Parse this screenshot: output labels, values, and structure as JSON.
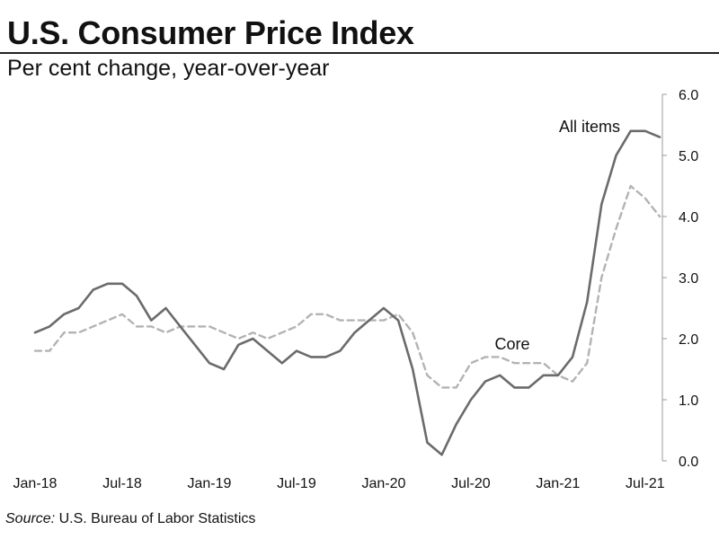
{
  "header": {
    "title": "U.S. Consumer Price Index",
    "subtitle": "Per cent change, year-over-year"
  },
  "source": {
    "label": "Source:",
    "text": "U.S. Bureau of Labor Statistics"
  },
  "colors": {
    "all_items": "#6b6b6b",
    "core": "#b3b3b3",
    "axis": "#999999"
  },
  "chart_data": {
    "type": "line",
    "title": "U.S. Consumer Price Index",
    "subtitle": "Per cent change, year-over-year",
    "xlabel": "",
    "ylabel": "",
    "ylim": [
      0,
      6
    ],
    "y_ticks": [
      "0.0",
      "1.0",
      "2.0",
      "3.0",
      "4.0",
      "5.0",
      "6.0"
    ],
    "y_axis_side": "right",
    "x_tick_labels": [
      "Jan-18",
      "Jul-18",
      "Jan-19",
      "Jul-19",
      "Jan-20",
      "Jul-20",
      "Jan-21",
      "Jul-21"
    ],
    "x_tick_index": [
      0,
      6,
      12,
      18,
      24,
      30,
      36,
      42
    ],
    "months": [
      "2018-01",
      "2018-02",
      "2018-03",
      "2018-04",
      "2018-05",
      "2018-06",
      "2018-07",
      "2018-08",
      "2018-09",
      "2018-10",
      "2018-11",
      "2018-12",
      "2019-01",
      "2019-02",
      "2019-03",
      "2019-04",
      "2019-05",
      "2019-06",
      "2019-07",
      "2019-08",
      "2019-09",
      "2019-10",
      "2019-11",
      "2019-12",
      "2020-01",
      "2020-02",
      "2020-03",
      "2020-04",
      "2020-05",
      "2020-06",
      "2020-07",
      "2020-08",
      "2020-09",
      "2020-10",
      "2020-11",
      "2020-12",
      "2021-01",
      "2021-02",
      "2021-03",
      "2021-04",
      "2021-05",
      "2021-06",
      "2021-07",
      "2021-08"
    ],
    "grid": false,
    "series": [
      {
        "name": "All items",
        "style": "solid",
        "values": [
          2.1,
          2.2,
          2.4,
          2.5,
          2.8,
          2.9,
          2.9,
          2.7,
          2.3,
          2.5,
          2.2,
          1.9,
          1.6,
          1.5,
          1.9,
          2.0,
          1.8,
          1.6,
          1.8,
          1.7,
          1.7,
          1.8,
          2.1,
          2.3,
          2.5,
          2.3,
          1.5,
          0.3,
          0.1,
          0.6,
          1.0,
          1.3,
          1.4,
          1.2,
          1.2,
          1.4,
          1.4,
          1.7,
          2.6,
          4.2,
          5.0,
          5.4,
          5.4,
          5.3
        ]
      },
      {
        "name": "Core",
        "style": "dashed",
        "values": [
          1.8,
          1.8,
          2.1,
          2.1,
          2.2,
          2.3,
          2.4,
          2.2,
          2.2,
          2.1,
          2.2,
          2.2,
          2.2,
          2.1,
          2.0,
          2.1,
          2.0,
          2.1,
          2.2,
          2.4,
          2.4,
          2.3,
          2.3,
          2.3,
          2.3,
          2.4,
          2.1,
          1.4,
          1.2,
          1.2,
          1.6,
          1.7,
          1.7,
          1.6,
          1.6,
          1.6,
          1.4,
          1.3,
          1.6,
          3.0,
          3.8,
          4.5,
          4.3,
          4.0
        ]
      }
    ],
    "annotations": [
      {
        "text": "All items",
        "series": "All items"
      },
      {
        "text": "Core",
        "series": "Core"
      }
    ]
  }
}
